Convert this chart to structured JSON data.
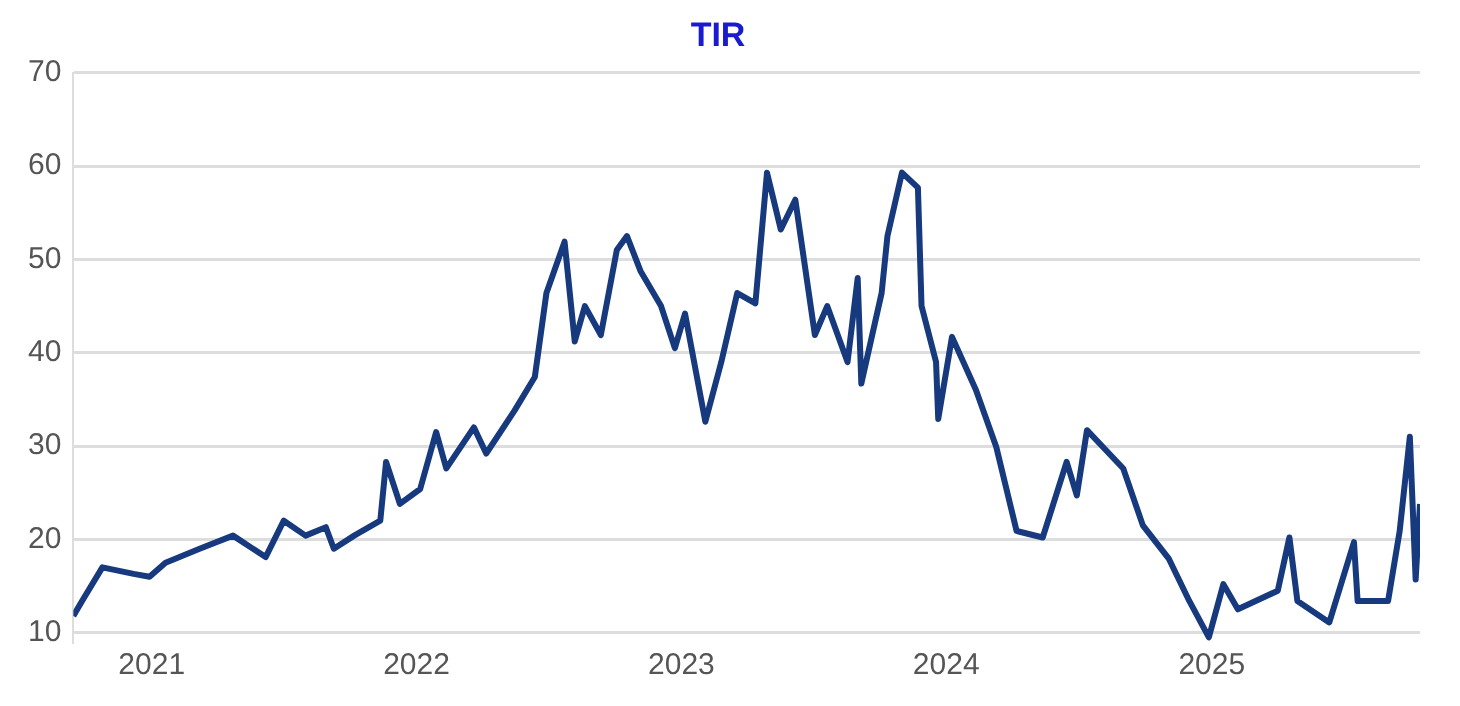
{
  "chart_data": {
    "type": "line",
    "title": "TIR",
    "grid": "y",
    "marker": "none",
    "line_style": "solid",
    "xlim": [
      "2020-09-15",
      "2025-10-15"
    ],
    "xticks": [
      {
        "value": "2021-01-01",
        "label": "2021"
      },
      {
        "value": "2022-01-01",
        "label": "2022"
      },
      {
        "value": "2023-01-01",
        "label": "2023"
      },
      {
        "value": "2024-01-01",
        "label": "2024"
      },
      {
        "value": "2025-01-01",
        "label": "2025"
      }
    ],
    "ylim": [
      9,
      70
    ],
    "yticks": [
      10,
      20,
      30,
      40,
      50,
      60,
      70
    ],
    "x": [
      "2020-09-15",
      "2020-09-27",
      "2020-10-25",
      "2020-12-07",
      "2020-12-29",
      "2021-01-20",
      "2021-03-08",
      "2021-04-23",
      "2021-06-07",
      "2021-07-02",
      "2021-08-01",
      "2021-08-29",
      "2021-09-09",
      "2021-10-07",
      "2021-11-12",
      "2021-11-20",
      "2021-12-09",
      "2022-01-06",
      "2022-01-28",
      "2022-02-11",
      "2022-03-21",
      "2022-04-07",
      "2022-05-16",
      "2022-06-13",
      "2022-06-29",
      "2022-07-24",
      "2022-08-07",
      "2022-08-21",
      "2022-09-12",
      "2022-10-04",
      "2022-10-18",
      "2022-11-06",
      "2022-12-04",
      "2022-12-23",
      "2023-01-06",
      "2023-02-03",
      "2023-02-25",
      "2023-03-19",
      "2023-04-13",
      "2023-04-29",
      "2023-05-18",
      "2023-06-07",
      "2023-07-04",
      "2023-07-21",
      "2023-08-18",
      "2023-09-01",
      "2023-09-06",
      "2023-10-04",
      "2023-10-12",
      "2023-11-01",
      "2023-11-23",
      "2023-11-28",
      "2023-12-18",
      "2023-12-21",
      "2024-01-09",
      "2024-02-11",
      "2024-03-10",
      "2024-04-07",
      "2024-05-13",
      "2024-06-15",
      "2024-06-29",
      "2024-07-13",
      "2024-08-04",
      "2024-09-01",
      "2024-09-28",
      "2024-11-03",
      "2024-12-01",
      "2024-12-28",
      "2025-01-17",
      "2025-02-06",
      "2025-04-02",
      "2025-04-18",
      "2025-04-29",
      "2025-06-12",
      "2025-07-16",
      "2025-07-21",
      "2025-09-01",
      "2025-09-17",
      "2025-10-01",
      "2025-10-09",
      "2025-10-15"
    ],
    "series": [
      {
        "color": "#173a7e",
        "values": [
          11.8,
          13.4,
          17,
          16.3,
          16,
          17.5,
          19,
          20.4,
          18.1,
          22,
          20.4,
          21.3,
          19,
          20.4,
          22,
          28.3,
          23.8,
          25.4,
          31.5,
          27.6,
          32,
          29.2,
          33.8,
          37.4,
          46.4,
          51.9,
          41.2,
          45,
          41.9,
          51,
          52.5,
          48.7,
          45,
          40.5,
          44.2,
          32.6,
          39,
          46.4,
          45.3,
          59.3,
          53.2,
          56.4,
          41.9,
          45,
          39,
          48,
          36.7,
          46.4,
          52.5,
          59.3,
          57.7,
          45,
          39,
          32.9,
          41.7,
          36,
          29.9,
          20.9,
          20.2,
          28.3,
          24.7,
          31.7,
          29.9,
          27.6,
          21.5,
          17.9,
          13.4,
          9.5,
          15.2,
          12.5,
          14.5,
          20.2,
          13.4,
          11.1,
          19.7,
          13.4,
          13.4,
          20.9,
          31,
          15.7,
          23.8
        ]
      }
    ]
  }
}
